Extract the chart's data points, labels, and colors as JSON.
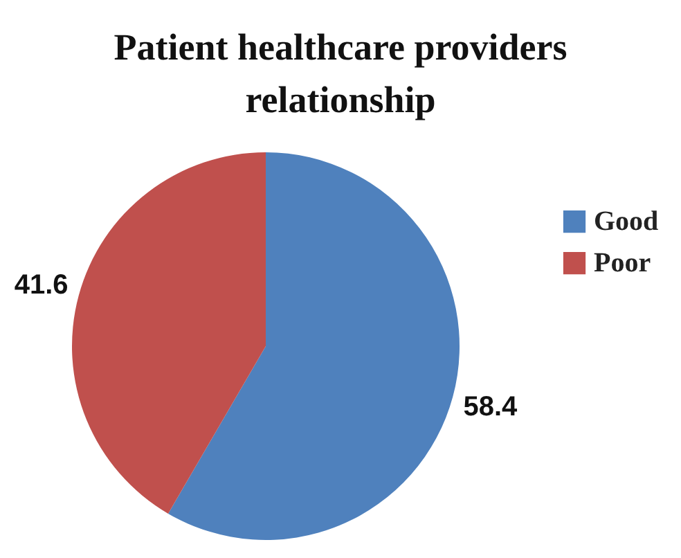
{
  "chart_data": {
    "type": "pie",
    "title": "Patient healthcare providers relationship",
    "categories": [
      "Good",
      "Poor"
    ],
    "values": [
      58.4,
      41.6
    ],
    "colors": [
      "#4f81bd",
      "#c0504d"
    ],
    "data_labels": true,
    "legend": "top right"
  }
}
